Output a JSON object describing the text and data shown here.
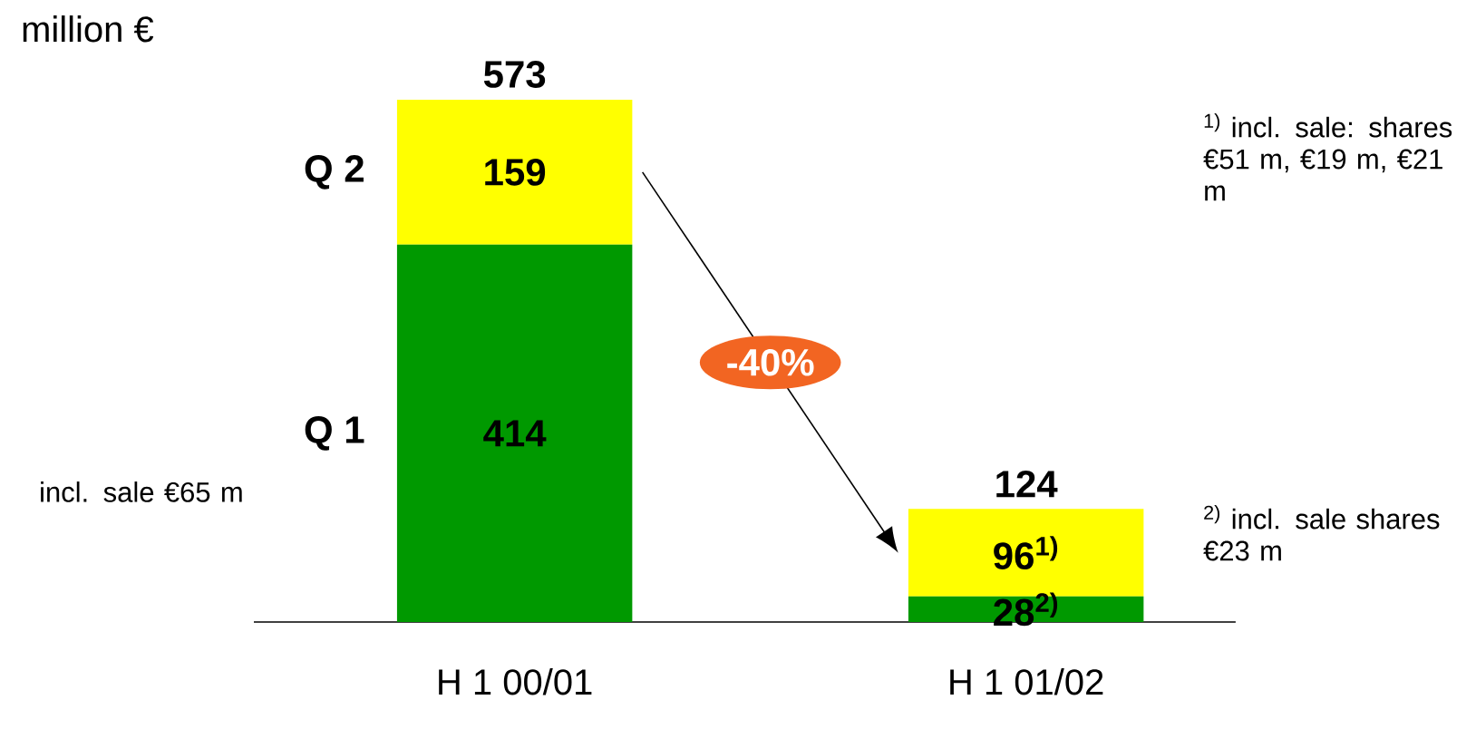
{
  "chart_data": {
    "type": "bar",
    "stacked": true,
    "ylabel": "million €",
    "categories": [
      "H 1 00/01",
      "H 1 01/02"
    ],
    "series": [
      {
        "name": "Q 1",
        "color": "#009900",
        "values": [
          414,
          28
        ],
        "value_labels": [
          "414",
          "28$^{2)}$"
        ]
      },
      {
        "name": "Q 2",
        "color": "#ffff00",
        "values": [
          159,
          96
        ],
        "value_labels": [
          "159",
          "96$^{1)}$"
        ]
      }
    ],
    "totals": [
      "573",
      "124"
    ],
    "annotations": [
      "incl. sale €65 m",
      "$^{1)}$ incl. sale: shares €51 m, €19 m, €21 m",
      "$^{2)}$ incl. sale shares €23 m",
      "-40%"
    ]
  }
}
